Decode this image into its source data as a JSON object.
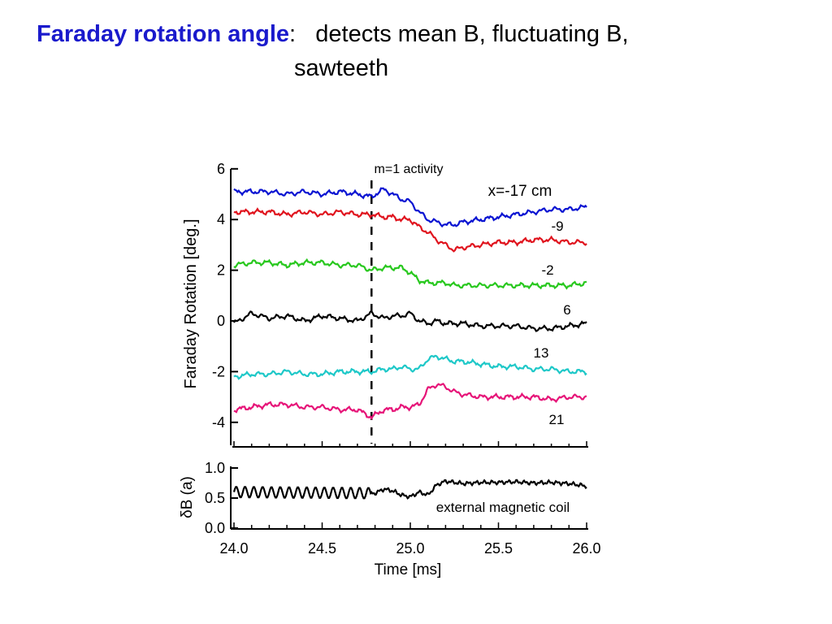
{
  "slide": {
    "title_bold": "Faraday rotation angle",
    "title_colon": ":",
    "title_rest": "detects mean B, fluctuating B,",
    "title_line2": "sawteeth",
    "accent_color": "#1a1acc"
  },
  "chart_data": [
    {
      "type": "line",
      "ylabel": "Faraday Rotation [deg.]",
      "xlim": [
        24.0,
        26.0
      ],
      "ylim": [
        -5.0,
        6.0
      ],
      "yticks": [
        "6",
        "4",
        "2",
        "0",
        "-2",
        "-4"
      ],
      "annotations": {
        "marker_label": "m=1 activity",
        "marker_x": 24.78,
        "position_label": "x=-17 cm"
      },
      "x": [
        24.0,
        24.1,
        24.2,
        24.3,
        24.4,
        24.5,
        24.6,
        24.7,
        24.78,
        24.85,
        24.9,
        24.95,
        25.0,
        25.05,
        25.1,
        25.15,
        25.2,
        25.25,
        25.3,
        25.4,
        25.5,
        25.6,
        25.7,
        25.8,
        25.9,
        26.0
      ],
      "series": [
        {
          "name": "-17",
          "color": "#0a14d2",
          "values": [
            5.1,
            5.1,
            5.1,
            5.0,
            5.1,
            5.0,
            5.1,
            5.0,
            4.9,
            5.2,
            5.0,
            4.8,
            4.7,
            4.3,
            4.0,
            3.9,
            3.8,
            3.8,
            3.9,
            4.0,
            4.1,
            4.2,
            4.3,
            4.4,
            4.4,
            4.5
          ]
        },
        {
          "name": "-9",
          "color": "#e0141e",
          "values": [
            4.3,
            4.3,
            4.3,
            4.2,
            4.3,
            4.2,
            4.3,
            4.2,
            4.2,
            4.1,
            4.1,
            4.0,
            4.0,
            3.7,
            3.5,
            3.2,
            3.0,
            2.8,
            2.9,
            3.0,
            3.1,
            3.1,
            3.2,
            3.2,
            3.1,
            3.1
          ]
        },
        {
          "name": "-2",
          "color": "#28c81e",
          "values": [
            2.2,
            2.3,
            2.3,
            2.2,
            2.3,
            2.3,
            2.2,
            2.2,
            2.0,
            2.1,
            2.1,
            2.1,
            1.9,
            1.6,
            1.5,
            1.5,
            1.5,
            1.4,
            1.4,
            1.4,
            1.4,
            1.4,
            1.4,
            1.4,
            1.4,
            1.5
          ]
        },
        {
          "name": "6",
          "color": "#000000",
          "values": [
            -0.1,
            0.3,
            0.1,
            0.2,
            0.0,
            0.2,
            0.1,
            0.0,
            0.3,
            0.1,
            0.2,
            0.2,
            0.3,
            0.0,
            -0.1,
            0.0,
            -0.1,
            -0.1,
            -0.1,
            -0.2,
            -0.2,
            -0.2,
            -0.3,
            -0.3,
            -0.2,
            -0.1
          ]
        },
        {
          "name": "13",
          "color": "#1ec8c8",
          "values": [
            -2.2,
            -2.1,
            -2.1,
            -2.0,
            -2.1,
            -2.1,
            -2.0,
            -2.0,
            -2.0,
            -1.9,
            -1.9,
            -1.8,
            -1.9,
            -1.9,
            -1.5,
            -1.4,
            -1.5,
            -1.6,
            -1.6,
            -1.7,
            -1.8,
            -1.8,
            -1.9,
            -1.9,
            -2.0,
            -2.0
          ]
        },
        {
          "name": "21",
          "color": "#e61478",
          "values": [
            -3.5,
            -3.4,
            -3.3,
            -3.3,
            -3.4,
            -3.4,
            -3.5,
            -3.5,
            -3.8,
            -3.5,
            -3.5,
            -3.4,
            -3.4,
            -3.3,
            -2.7,
            -2.5,
            -2.6,
            -2.8,
            -2.9,
            -3.0,
            -3.0,
            -3.0,
            -3.0,
            -3.1,
            -3.0,
            -3.0
          ]
        }
      ]
    },
    {
      "type": "line",
      "ylabel": "δB (a)",
      "xlabel": "Time [ms]",
      "xlim": [
        24.0,
        26.0
      ],
      "ylim": [
        0.0,
        1.0
      ],
      "yticks": [
        "1.0",
        "0.5",
        "0.0"
      ],
      "xticks": [
        "24.0",
        "24.5",
        "25.0",
        "25.5",
        "26.0"
      ],
      "annotation": "external  magnetic coil",
      "x": [
        24.0,
        24.8,
        24.85,
        24.9,
        24.95,
        25.0,
        25.05,
        25.1,
        25.15,
        25.2,
        25.3,
        25.4,
        25.5,
        25.6,
        25.7,
        25.8,
        25.9,
        26.0
      ],
      "series": [
        {
          "name": "δB",
          "color": "#000000",
          "values": [
            0.6,
            0.58,
            0.65,
            0.62,
            0.55,
            0.52,
            0.6,
            0.55,
            0.72,
            0.78,
            0.74,
            0.76,
            0.76,
            0.77,
            0.75,
            0.76,
            0.74,
            0.7
          ]
        }
      ]
    }
  ]
}
